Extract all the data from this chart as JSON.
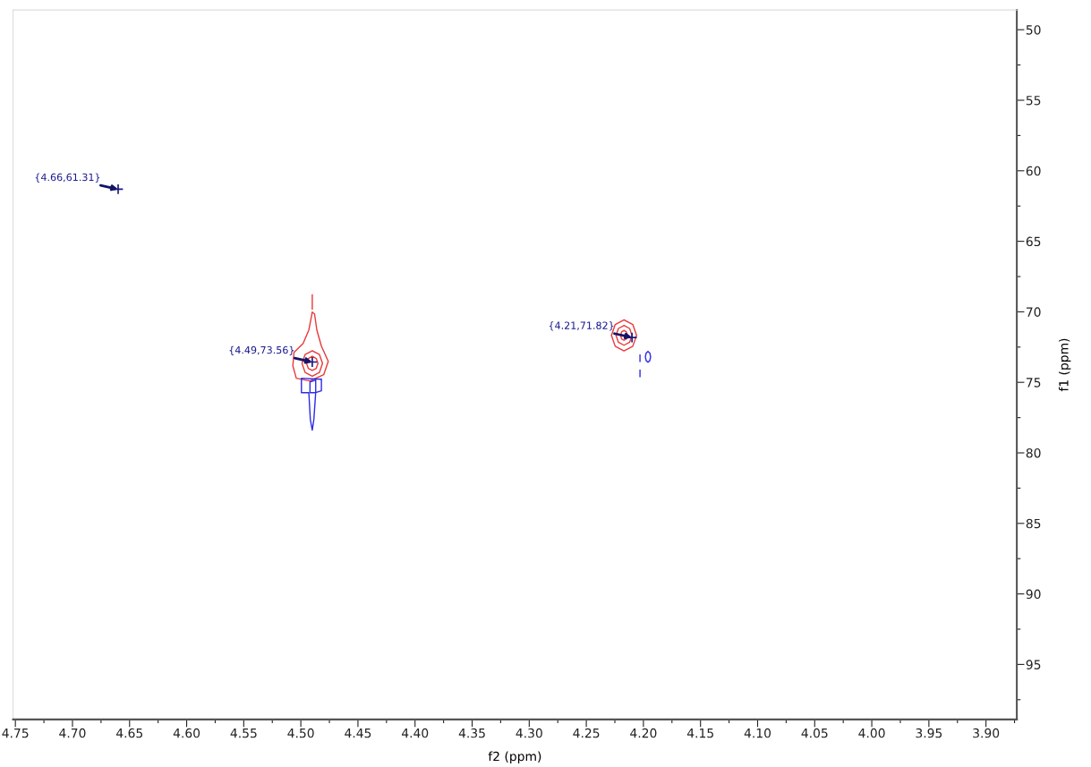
{
  "chart_data": {
    "type": "scatter",
    "xlabel": "f2 (ppm)",
    "ylabel": "f1 (ppm)",
    "xlim": [
      4.752,
      3.873
    ],
    "ylim": [
      98.9,
      48.6
    ],
    "xticks": [
      {
        "value": 4.75,
        "label": "4.75"
      },
      {
        "value": 4.725,
        "label": null
      },
      {
        "value": 4.7,
        "label": "4.70"
      },
      {
        "value": 4.675,
        "label": null
      },
      4.65,
      {
        "value": 4.625,
        "label": null
      },
      {
        "value": 4.6,
        "label": "4.60"
      },
      {
        "value": 4.575,
        "label": null
      },
      4.55,
      {
        "value": 4.525,
        "label": null
      },
      {
        "value": 4.5,
        "label": "4.50"
      },
      {
        "value": 4.475,
        "label": null
      },
      4.45,
      {
        "value": 4.425,
        "label": null
      },
      {
        "value": 4.4,
        "label": "4.40"
      },
      {
        "value": 4.375,
        "label": null
      },
      4.35,
      {
        "value": 4.325,
        "label": null
      },
      {
        "value": 4.3,
        "label": "4.30"
      },
      {
        "value": 4.275,
        "label": null
      },
      4.25,
      {
        "value": 4.225,
        "label": null
      },
      {
        "value": 4.2,
        "label": "4.20"
      },
      {
        "value": 4.175,
        "label": null
      },
      4.15,
      {
        "value": 4.125,
        "label": null
      },
      {
        "value": 4.1,
        "label": "4.10"
      },
      {
        "value": 4.075,
        "label": null
      },
      4.05,
      {
        "value": 4.025,
        "label": null
      },
      {
        "value": 4.0,
        "label": "4.00"
      },
      {
        "value": 3.975,
        "label": null
      },
      3.95,
      {
        "value": 3.925,
        "label": null
      },
      {
        "value": 3.9,
        "label": "3.90"
      },
      {
        "value": 3.875,
        "label": null
      }
    ],
    "yticks": [
      50,
      {
        "value": 52.5,
        "label": null
      },
      55,
      {
        "value": 57.5,
        "label": null
      },
      60,
      {
        "value": 62.5,
        "label": null
      },
      65,
      {
        "value": 67.5,
        "label": null
      },
      70,
      {
        "value": 72.5,
        "label": null
      },
      75,
      {
        "value": 77.5,
        "label": null
      },
      80,
      {
        "value": 82.5,
        "label": null
      },
      85,
      {
        "value": 87.5,
        "label": null
      },
      90,
      {
        "value": 92.5,
        "label": null
      },
      95,
      {
        "value": 97.5,
        "label": null
      }
    ],
    "grid": false,
    "legend": false,
    "series": [
      {
        "color": "#1a1a80",
        "marker": "cross",
        "x": [
          4.66,
          4.49,
          4.21
        ],
        "values": [
          61.31,
          73.56,
          71.82
        ]
      }
    ],
    "annotations": [
      {
        "text": "{4.66,61.31}",
        "x": 4.66,
        "y": 61.31
      },
      {
        "text": "{4.49,73.56}",
        "x": 4.49,
        "y": 73.56
      },
      {
        "text": "{4.21,71.82}",
        "x": 4.21,
        "y": 71.82
      }
    ]
  }
}
